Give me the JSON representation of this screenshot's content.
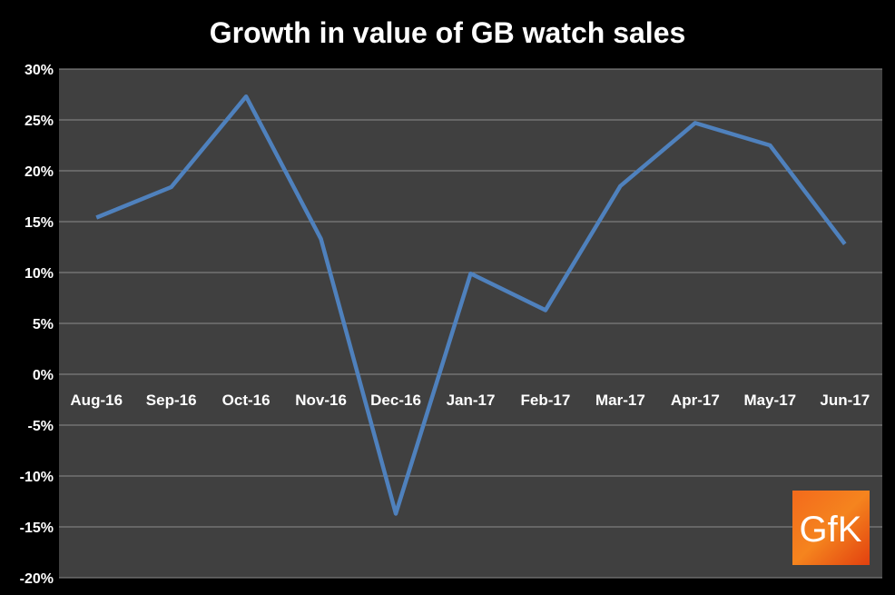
{
  "chart_data": {
    "type": "line",
    "title": "Growth in value of GB watch sales",
    "categories": [
      "Aug-16",
      "Sep-16",
      "Oct-16",
      "Nov-16",
      "Dec-16",
      "Jan-17",
      "Feb-17",
      "Mar-17",
      "Apr-17",
      "May-17",
      "Jun-17"
    ],
    "series": [
      {
        "values": [
          15.4,
          18.4,
          27.3,
          13.3,
          -13.7,
          9.9,
          6.3,
          18.5,
          24.7,
          22.5,
          12.8
        ],
        "color": "#4f81bd"
      }
    ],
    "ylim": [
      -20,
      30
    ],
    "yticks": [
      -20,
      -15,
      -10,
      -5,
      0,
      5,
      10,
      15,
      20,
      25,
      30
    ],
    "ytick_labels": [
      "-20%",
      "-15%",
      "-10%",
      "-5%",
      "0%",
      "5%",
      "10%",
      "15%",
      "20%",
      "25%",
      "30%"
    ],
    "grid": true,
    "plot_background": "#404040",
    "gridline_color": "#8c8c8c"
  },
  "logo": {
    "text": "GfK",
    "color": "#f05a14"
  }
}
